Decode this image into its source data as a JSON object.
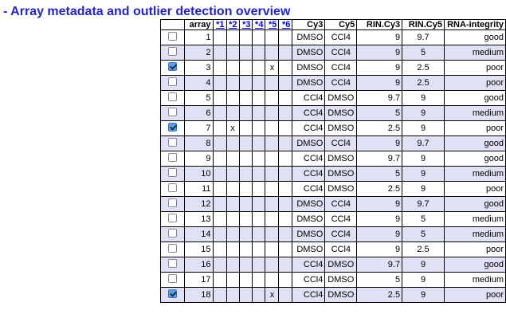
{
  "title": "- Array metadata and outlier detection overview",
  "columns": {
    "array": "array",
    "flags": [
      "*1",
      "*2",
      "*3",
      "*4",
      "*5",
      "*6"
    ],
    "cy3": "Cy3",
    "cy5": "Cy5",
    "rin_cy3": "RIN.Cy3",
    "rin_cy5": "RIN.Cy5",
    "rna": "RNA-integrity"
  },
  "rows": [
    {
      "checked": false,
      "array": "1",
      "flags": [
        "",
        "",
        "",
        "",
        "",
        ""
      ],
      "cy3": "DMSO",
      "cy5": "CCl4",
      "rin_cy3": "9",
      "rin_cy5": "9.7",
      "rna": "good"
    },
    {
      "checked": false,
      "array": "2",
      "flags": [
        "",
        "",
        "",
        "",
        "",
        ""
      ],
      "cy3": "DMSO",
      "cy5": "CCl4",
      "rin_cy3": "9",
      "rin_cy5": "5",
      "rna": "medium"
    },
    {
      "checked": true,
      "array": "3",
      "flags": [
        "",
        "",
        "",
        "",
        "x",
        ""
      ],
      "cy3": "DMSO",
      "cy5": "CCl4",
      "rin_cy3": "9",
      "rin_cy5": "2.5",
      "rna": "poor"
    },
    {
      "checked": false,
      "array": "4",
      "flags": [
        "",
        "",
        "",
        "",
        "",
        ""
      ],
      "cy3": "DMSO",
      "cy5": "CCl4",
      "rin_cy3": "9",
      "rin_cy5": "2.5",
      "rna": "poor"
    },
    {
      "checked": false,
      "array": "5",
      "flags": [
        "",
        "",
        "",
        "",
        "",
        ""
      ],
      "cy3": "CCl4",
      "cy5": "DMSO",
      "rin_cy3": "9.7",
      "rin_cy5": "9",
      "rna": "good"
    },
    {
      "checked": false,
      "array": "6",
      "flags": [
        "",
        "",
        "",
        "",
        "",
        ""
      ],
      "cy3": "CCl4",
      "cy5": "DMSO",
      "rin_cy3": "5",
      "rin_cy5": "9",
      "rna": "medium"
    },
    {
      "checked": true,
      "array": "7",
      "flags": [
        "",
        "x",
        "",
        "",
        "",
        ""
      ],
      "cy3": "CCl4",
      "cy5": "DMSO",
      "rin_cy3": "2.5",
      "rin_cy5": "9",
      "rna": "poor"
    },
    {
      "checked": false,
      "array": "8",
      "flags": [
        "",
        "",
        "",
        "",
        "",
        ""
      ],
      "cy3": "DMSO",
      "cy5": "CCl4",
      "rin_cy3": "9",
      "rin_cy5": "9.7",
      "rna": "good"
    },
    {
      "checked": false,
      "array": "9",
      "flags": [
        "",
        "",
        "",
        "",
        "",
        ""
      ],
      "cy3": "CCl4",
      "cy5": "DMSO",
      "rin_cy3": "9.7",
      "rin_cy5": "9",
      "rna": "good"
    },
    {
      "checked": false,
      "array": "10",
      "flags": [
        "",
        "",
        "",
        "",
        "",
        ""
      ],
      "cy3": "CCl4",
      "cy5": "DMSO",
      "rin_cy3": "5",
      "rin_cy5": "9",
      "rna": "medium"
    },
    {
      "checked": false,
      "array": "11",
      "flags": [
        "",
        "",
        "",
        "",
        "",
        ""
      ],
      "cy3": "CCl4",
      "cy5": "DMSO",
      "rin_cy3": "2.5",
      "rin_cy5": "9",
      "rna": "poor"
    },
    {
      "checked": false,
      "array": "12",
      "flags": [
        "",
        "",
        "",
        "",
        "",
        ""
      ],
      "cy3": "DMSO",
      "cy5": "CCl4",
      "rin_cy3": "9",
      "rin_cy5": "9.7",
      "rna": "good"
    },
    {
      "checked": false,
      "array": "13",
      "flags": [
        "",
        "",
        "",
        "",
        "",
        ""
      ],
      "cy3": "DMSO",
      "cy5": "CCl4",
      "rin_cy3": "9",
      "rin_cy5": "5",
      "rna": "medium"
    },
    {
      "checked": false,
      "array": "14",
      "flags": [
        "",
        "",
        "",
        "",
        "",
        ""
      ],
      "cy3": "DMSO",
      "cy5": "CCl4",
      "rin_cy3": "9",
      "rin_cy5": "5",
      "rna": "medium"
    },
    {
      "checked": false,
      "array": "15",
      "flags": [
        "",
        "",
        "",
        "",
        "",
        ""
      ],
      "cy3": "DMSO",
      "cy5": "CCl4",
      "rin_cy3": "9",
      "rin_cy5": "2.5",
      "rna": "poor"
    },
    {
      "checked": false,
      "array": "16",
      "flags": [
        "",
        "",
        "",
        "",
        "",
        ""
      ],
      "cy3": "CCl4",
      "cy5": "DMSO",
      "rin_cy3": "9.7",
      "rin_cy5": "9",
      "rna": "good"
    },
    {
      "checked": false,
      "array": "17",
      "flags": [
        "",
        "",
        "",
        "",
        "",
        ""
      ],
      "cy3": "CCl4",
      "cy5": "DMSO",
      "rin_cy3": "5",
      "rin_cy5": "9",
      "rna": "medium"
    },
    {
      "checked": true,
      "array": "18",
      "flags": [
        "",
        "",
        "",
        "",
        "x",
        ""
      ],
      "cy3": "CCl4",
      "cy5": "DMSO",
      "rin_cy3": "2.5",
      "rin_cy5": "9",
      "rna": "poor"
    }
  ],
  "colors": {
    "title": "#2222c8",
    "row_stripe": "#e1e1f5",
    "link": "#0000ee",
    "checkbox_checked": "#5e9fe8"
  }
}
